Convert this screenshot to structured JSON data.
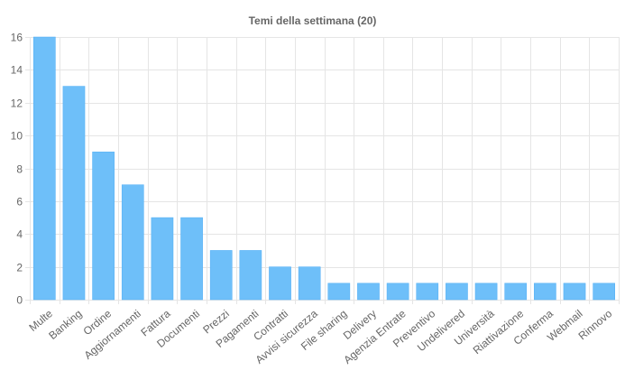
{
  "chart_data": {
    "type": "bar",
    "title": "Temi della settimana (20)",
    "xlabel": "",
    "ylabel": "",
    "categories": [
      "Multe",
      "Banking",
      "Ordine",
      "Aggiornamenti",
      "Fattura",
      "Documenti",
      "Prezzi",
      "Pagamenti",
      "Contratti",
      "Avvisi sicurezza",
      "File sharing",
      "Delivery",
      "Agenzia Entrate",
      "Preventivo",
      "Undelivered",
      "Università",
      "Riattivazione",
      "Conferma",
      "Webmail",
      "Rinnovo"
    ],
    "values": [
      16,
      13,
      9,
      7,
      5,
      5,
      3,
      3,
      2,
      2,
      1,
      1,
      1,
      1,
      1,
      1,
      1,
      1,
      1,
      1
    ],
    "ylim": [
      0,
      16
    ],
    "yticks": [
      0,
      2,
      4,
      6,
      8,
      10,
      12,
      14,
      16
    ],
    "grid": true,
    "legend": "none",
    "colors": {
      "bar_fill": "#6ebff9",
      "bar_stroke": "#50aef5",
      "grid": "#e5e5e5",
      "text": "#666666"
    }
  }
}
